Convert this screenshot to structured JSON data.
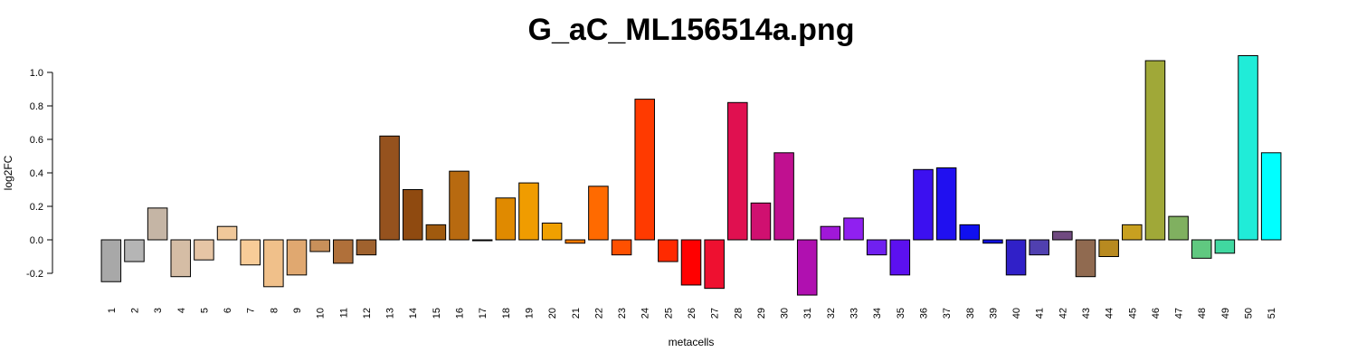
{
  "chart_data": {
    "type": "bar",
    "title": "G_aC_ML156514a.png",
    "xlabel": "metacells",
    "ylabel": "log2FC",
    "ylim": [
      -0.3,
      1.1
    ],
    "yticks": [
      "-0.2",
      "0.0",
      "0.2",
      "0.4",
      "0.6",
      "0.8",
      "1.0"
    ],
    "grid": false,
    "legend": "none",
    "categories": [
      "1",
      "2",
      "3",
      "4",
      "5",
      "6",
      "7",
      "8",
      "9",
      "10",
      "11",
      "12",
      "13",
      "14",
      "15",
      "16",
      "17",
      "18",
      "19",
      "20",
      "21",
      "22",
      "23",
      "24",
      "25",
      "26",
      "27",
      "28",
      "29",
      "30",
      "31",
      "32",
      "33",
      "34",
      "35",
      "36",
      "37",
      "38",
      "39",
      "40",
      "41",
      "42",
      "43",
      "44",
      "45",
      "46",
      "47",
      "48",
      "49",
      "50",
      "51"
    ],
    "values": [
      -0.25,
      -0.13,
      0.19,
      -0.22,
      -0.12,
      0.08,
      -0.15,
      -0.28,
      -0.21,
      -0.07,
      -0.14,
      -0.09,
      0.62,
      0.3,
      0.09,
      0.41,
      0.0,
      0.25,
      0.34,
      0.1,
      -0.02,
      0.32,
      -0.09,
      0.84,
      -0.13,
      -0.27,
      -0.29,
      0.82,
      0.22,
      0.52,
      -0.33,
      0.08,
      0.13,
      -0.09,
      -0.21,
      0.42,
      0.43,
      0.09,
      -0.02,
      -0.21,
      -0.09,
      0.05,
      -0.22,
      -0.1,
      0.09,
      1.07,
      0.14,
      -0.11,
      -0.08,
      1.1,
      0.52
    ],
    "colors": [
      "#a8a8a8",
      "#b5b5b5",
      "#c5b5a5",
      "#d5bda5",
      "#e6c5a5",
      "#f0c89a",
      "#f8cc98",
      "#f0c08a",
      "#e0a870",
      "#c8905a",
      "#b0703a",
      "#a0622e",
      "#95521e",
      "#8f4a10",
      "#a05a0e",
      "#b86a10",
      "#d07e10",
      "#e08a00",
      "#f09c00",
      "#f0a000",
      "#f57a00",
      "#ff6a00",
      "#ff5000",
      "#ff3a00",
      "#ff2a00",
      "#ff0000",
      "#ee1030",
      "#e01050",
      "#d01070",
      "#c01090",
      "#b010b0",
      "#a018d8",
      "#9020f0",
      "#7020f0",
      "#5c10f0",
      "#3c10f0",
      "#2010f0",
      "#1010f0",
      "#1010e0",
      "#3020c8",
      "#5040b0",
      "#704a80",
      "#906a50",
      "#b88a20",
      "#c8a020",
      "#a0a838",
      "#80b060",
      "#60c880",
      "#40d8a0",
      "#20ecd8",
      "#00ffff"
    ]
  }
}
